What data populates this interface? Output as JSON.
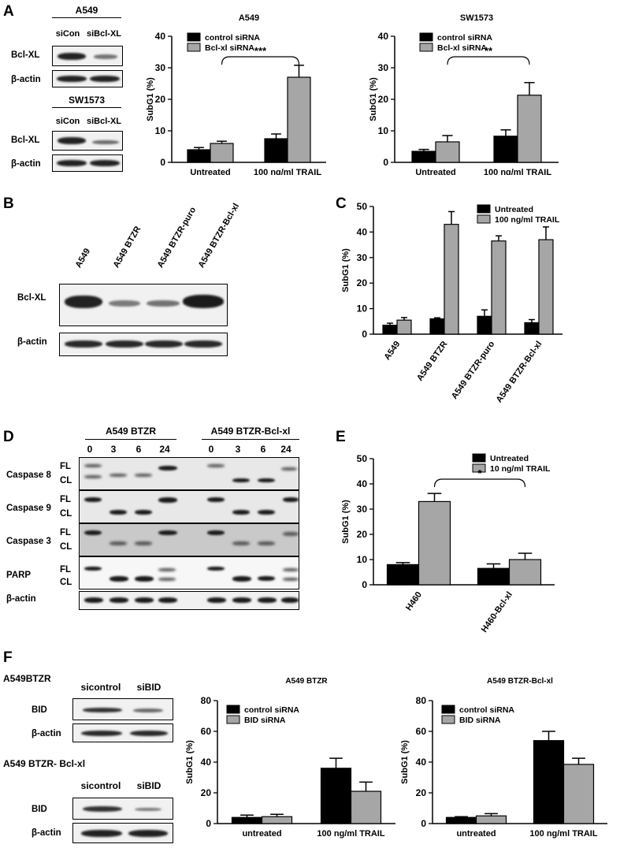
{
  "panels": {
    "A": {
      "label": "A",
      "blots": {
        "a549": {
          "cell_line": "A549",
          "lanes": [
            "siCon",
            "siBcl-XL"
          ],
          "rows": [
            {
              "label": "Bcl-XL",
              "levels": [
                0.95,
                0.45
              ]
            },
            {
              "label": "β-actin",
              "levels": [
                0.95,
                0.95
              ]
            }
          ]
        },
        "sw1573": {
          "cell_line": "SW1573",
          "lanes": [
            "siCon",
            "siBcl-XL"
          ],
          "rows": [
            {
              "label": "Bcl-XL",
              "levels": [
                0.95,
                0.5
              ]
            },
            {
              "label": "β-actin",
              "levels": [
                0.95,
                0.95
              ]
            }
          ]
        }
      }
    },
    "B": {
      "label": "B",
      "lanes": [
        "A549",
        "A549 BTZR",
        "A549 BTZR-puro",
        "A549 BTZR-Bcl-xl"
      ],
      "rows": [
        {
          "label": "Bcl-XL",
          "levels": [
            0.95,
            0.4,
            0.45,
            1.0
          ]
        },
        {
          "label": "β-actin",
          "levels": [
            0.9,
            0.9,
            0.9,
            0.9
          ]
        }
      ]
    },
    "C": {
      "label": "C"
    },
    "D": {
      "label": "D",
      "groups": [
        {
          "name": "A549 BTZR",
          "timepoints": [
            "0",
            "3",
            "6",
            "24"
          ]
        },
        {
          "name": "A549 BTZR-Bcl-xl",
          "timepoints": [
            "0",
            "3",
            "6",
            "24"
          ]
        }
      ],
      "rows": [
        {
          "label": "Caspase 8",
          "fl": "FL",
          "cl": "CL"
        },
        {
          "label": "Caspase 9",
          "fl": "FL",
          "cl": "CL"
        },
        {
          "label": "Caspase 3",
          "fl": "FL",
          "cl": "CL"
        },
        {
          "label": "PARP",
          "fl": "FL",
          "cl": "CL"
        },
        {
          "label": "β-actin"
        }
      ]
    },
    "E": {
      "label": "E"
    },
    "F": {
      "label": "F",
      "blots": {
        "btzr": {
          "cell_line": "A549BTZR",
          "lanes": [
            "sicontrol",
            "siBID"
          ],
          "rows": [
            {
              "label": "BID",
              "levels": [
                0.85,
                0.5
              ]
            },
            {
              "label": "β-actin",
              "levels": [
                0.9,
                0.9
              ]
            }
          ]
        },
        "bclxl": {
          "cell_line": "A549 BTZR- Bcl-xl",
          "lanes": [
            "sicontrol",
            "siBID"
          ],
          "rows": [
            {
              "label": "BID",
              "levels": [
                0.85,
                0.4
              ]
            },
            {
              "label": "β-actin",
              "levels": [
                0.95,
                0.95
              ]
            }
          ]
        }
      }
    }
  },
  "chart_data": [
    {
      "id": "A-A549",
      "type": "bar",
      "title": "A549",
      "ylabel": "SubG1 (%)",
      "xlabel": "",
      "ylim": [
        0,
        40
      ],
      "yticks": [
        0,
        10,
        20,
        30,
        40
      ],
      "categories": [
        "Untreated",
        "100 ng/ml TRAIL"
      ],
      "series": [
        {
          "name": "control siRNA",
          "color": "#000000",
          "values": [
            4,
            7.5
          ],
          "errors": [
            0.7,
            1.5
          ]
        },
        {
          "name": "Bcl-xl siRNA",
          "color": "#a6a6a6",
          "values": [
            6,
            27
          ],
          "errors": [
            0.7,
            3.8
          ]
        }
      ],
      "legend": "top-left",
      "significance": [
        {
          "from": [
            0,
            1
          ],
          "to": [
            1,
            1
          ],
          "label": "***"
        }
      ]
    },
    {
      "id": "A-SW1573",
      "type": "bar",
      "title": "SW1573",
      "ylabel": "SubG1 (%)",
      "xlabel": "",
      "ylim": [
        0,
        40
      ],
      "yticks": [
        0,
        10,
        20,
        30,
        40
      ],
      "categories": [
        "Untreated",
        "100 ng/ml TRAIL"
      ],
      "series": [
        {
          "name": "control siRNA",
          "color": "#000000",
          "values": [
            3.5,
            8.3
          ],
          "errors": [
            0.6,
            2
          ]
        },
        {
          "name": "Bcl-xl siRNA",
          "color": "#a6a6a6",
          "values": [
            6.5,
            21.3
          ],
          "errors": [
            2,
            4
          ]
        }
      ],
      "legend": "top-left",
      "significance": [
        {
          "from": [
            0,
            1
          ],
          "to": [
            1,
            1
          ],
          "label": "**"
        }
      ]
    },
    {
      "id": "C",
      "type": "bar",
      "title": "",
      "ylabel": "SubG1 (%)",
      "xlabel": "",
      "ylim": [
        0,
        50
      ],
      "yticks": [
        0,
        10,
        20,
        30,
        40,
        50
      ],
      "categories": [
        "A549",
        "A549 BTZR",
        "A549 BTZR-puro",
        "A549 BTZR-Bcl-xl"
      ],
      "series": [
        {
          "name": "Untreated",
          "color": "#000000",
          "values": [
            3.5,
            6,
            7,
            4.5
          ],
          "errors": [
            0.8,
            0.4,
            2.5,
            1.2
          ]
        },
        {
          "name": "100 ng/ml TRAIL",
          "color": "#a6a6a6",
          "values": [
            5.5,
            43,
            36.5,
            37
          ],
          "errors": [
            1,
            5,
            2,
            5
          ]
        }
      ],
      "legend": "top-right"
    },
    {
      "id": "E",
      "type": "bar",
      "title": "",
      "ylabel": "SubG1 (%)",
      "xlabel": "",
      "ylim": [
        0,
        50
      ],
      "yticks": [
        0,
        10,
        20,
        30,
        40,
        50
      ],
      "categories": [
        "H460",
        "H460-Bcl-xl"
      ],
      "series": [
        {
          "name": "Untreated",
          "color": "#000000",
          "values": [
            8,
            6.5
          ],
          "errors": [
            0.8,
            1.8
          ]
        },
        {
          "name": "10 ng/ml TRAIL",
          "color": "#a6a6a6",
          "values": [
            33,
            10
          ],
          "errors": [
            3.2,
            2.5
          ]
        }
      ],
      "legend": "top-center",
      "significance": [
        {
          "from": [
            0,
            1
          ],
          "to": [
            1,
            1
          ],
          "label": "*"
        }
      ]
    },
    {
      "id": "F-BTZR",
      "type": "bar",
      "title": "A549 BTZR",
      "ylabel": "SubG1 (%)",
      "xlabel": "",
      "ylim": [
        0,
        80
      ],
      "yticks": [
        0,
        20,
        40,
        60,
        80
      ],
      "categories": [
        "untreated",
        "100 ng/ml TRAIL"
      ],
      "series": [
        {
          "name": "control siRNA",
          "color": "#000000",
          "values": [
            4,
            36
          ],
          "errors": [
            1.5,
            6.5
          ]
        },
        {
          "name": "BID siRNA",
          "color": "#a6a6a6",
          "values": [
            4.5,
            21
          ],
          "errors": [
            1.5,
            6
          ]
        }
      ],
      "legend": "top-left"
    },
    {
      "id": "F-BclXL",
      "type": "bar",
      "title": "A549 BTZR-Bcl-xl",
      "ylabel": "SubG1 (%)",
      "xlabel": "",
      "ylim": [
        0,
        80
      ],
      "yticks": [
        0,
        20,
        40,
        60,
        80
      ],
      "categories": [
        "untreated",
        "100 ng/ml TRAIL"
      ],
      "series": [
        {
          "name": "control siRNA",
          "color": "#000000",
          "values": [
            4,
            54
          ],
          "errors": [
            0.5,
            6
          ]
        },
        {
          "name": "BID siRNA",
          "color": "#a6a6a6",
          "values": [
            5,
            38.5
          ],
          "errors": [
            1.5,
            4
          ]
        }
      ],
      "legend": "top-left"
    }
  ]
}
